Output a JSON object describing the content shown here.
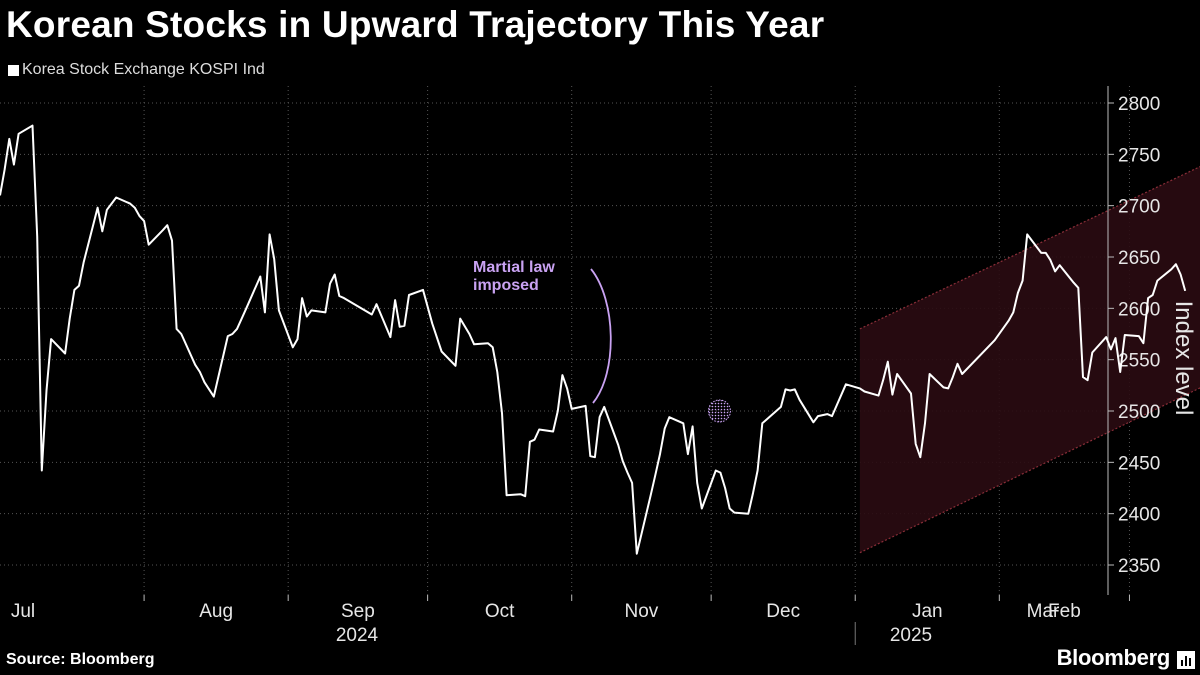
{
  "title": "Korean Stocks in Upward Trajectory This Year",
  "legend": "Korea Stock Exchange KOSPI Ind",
  "source": "Source: Bloomberg",
  "brand": "Bloomberg",
  "colors": {
    "background": "#000000",
    "line": "#ffffff",
    "annotation": "#c9a2f2",
    "channel": "#2a0b12",
    "channel_edge": "#8a2e38"
  },
  "chart_data": {
    "type": "line",
    "title": "Korean Stocks in Upward Trajectory This Year",
    "ylabel": "Index level",
    "ylim": [
      2320,
      2830
    ],
    "y_ticks": [
      2350,
      2400,
      2450,
      2500,
      2550,
      2600,
      2650,
      2700,
      2750,
      2800
    ],
    "x_tick_labels": [
      "Jul",
      "Aug",
      "Sep",
      "Oct",
      "Nov",
      "Dec",
      "Jan",
      "Feb",
      "Mar"
    ],
    "year_labels": [
      "2024",
      "2025"
    ],
    "grid": true,
    "legend_position": "top-left",
    "annotation": {
      "text": [
        "Martial law",
        "imposed"
      ],
      "date": "2024-12-03",
      "value": 2500
    },
    "channel": {
      "upper": [
        [
          "2025-01-02",
          2580
        ],
        [
          "2025-03-31",
          2770
        ]
      ],
      "lower": [
        [
          "2025-01-02",
          2362
        ],
        [
          "2025-03-31",
          2555
        ]
      ]
    },
    "series": [
      {
        "name": "Korea Stock Exchange KOSPI Ind",
        "points": [
          [
            "2024-07-01",
            2710
          ],
          [
            "2024-07-02",
            2735
          ],
          [
            "2024-07-03",
            2765
          ],
          [
            "2024-07-04",
            2740
          ],
          [
            "2024-07-05",
            2770
          ],
          [
            "2024-07-08",
            2778
          ],
          [
            "2024-07-09",
            2670
          ],
          [
            "2024-07-10",
            2442
          ],
          [
            "2024-07-11",
            2520
          ],
          [
            "2024-07-12",
            2570
          ],
          [
            "2024-07-15",
            2556
          ],
          [
            "2024-07-16",
            2590
          ],
          [
            "2024-07-17",
            2618
          ],
          [
            "2024-07-18",
            2622
          ],
          [
            "2024-07-19",
            2645
          ],
          [
            "2024-07-22",
            2698
          ],
          [
            "2024-07-23",
            2675
          ],
          [
            "2024-07-24",
            2696
          ],
          [
            "2024-07-25",
            2702
          ],
          [
            "2024-07-26",
            2708
          ],
          [
            "2024-07-29",
            2702
          ],
          [
            "2024-07-30",
            2698
          ],
          [
            "2024-07-31",
            2690
          ],
          [
            "2024-08-01",
            2685
          ],
          [
            "2024-08-02",
            2662
          ],
          [
            "2024-08-05",
            2676
          ],
          [
            "2024-08-06",
            2681
          ],
          [
            "2024-08-07",
            2666
          ],
          [
            "2024-08-08",
            2580
          ],
          [
            "2024-08-09",
            2575
          ],
          [
            "2024-08-12",
            2545
          ],
          [
            "2024-08-13",
            2538
          ],
          [
            "2024-08-14",
            2528
          ],
          [
            "2024-08-16",
            2514
          ],
          [
            "2024-08-19",
            2573
          ],
          [
            "2024-08-20",
            2575
          ],
          [
            "2024-08-21",
            2580
          ],
          [
            "2024-08-22",
            2590
          ],
          [
            "2024-08-23",
            2600
          ],
          [
            "2024-08-26",
            2631
          ],
          [
            "2024-08-27",
            2596
          ],
          [
            "2024-08-28",
            2672
          ],
          [
            "2024-08-29",
            2648
          ],
          [
            "2024-08-30",
            2598
          ],
          [
            "2024-09-02",
            2562
          ],
          [
            "2024-09-03",
            2570
          ],
          [
            "2024-09-04",
            2610
          ],
          [
            "2024-09-05",
            2592
          ],
          [
            "2024-09-06",
            2598
          ],
          [
            "2024-09-09",
            2596
          ],
          [
            "2024-09-10",
            2624
          ],
          [
            "2024-09-11",
            2633
          ],
          [
            "2024-09-12",
            2612
          ],
          [
            "2024-09-13",
            2610
          ],
          [
            "2024-09-19",
            2594
          ],
          [
            "2024-09-20",
            2604
          ],
          [
            "2024-09-23",
            2572
          ],
          [
            "2024-09-24",
            2608
          ],
          [
            "2024-09-25",
            2582
          ],
          [
            "2024-09-26",
            2583
          ],
          [
            "2024-09-27",
            2613
          ],
          [
            "2024-09-30",
            2618
          ],
          [
            "2024-10-02",
            2585
          ],
          [
            "2024-10-04",
            2558
          ],
          [
            "2024-10-07",
            2544
          ],
          [
            "2024-10-08",
            2590
          ],
          [
            "2024-10-10",
            2575
          ],
          [
            "2024-10-11",
            2565
          ],
          [
            "2024-10-14",
            2566
          ],
          [
            "2024-10-15",
            2562
          ],
          [
            "2024-10-16",
            2538
          ],
          [
            "2024-10-17",
            2498
          ],
          [
            "2024-10-18",
            2418
          ],
          [
            "2024-10-21",
            2419
          ],
          [
            "2024-10-22",
            2417
          ],
          [
            "2024-10-23",
            2470
          ],
          [
            "2024-10-24",
            2472
          ],
          [
            "2024-10-25",
            2482
          ],
          [
            "2024-10-28",
            2480
          ],
          [
            "2024-10-29",
            2500
          ],
          [
            "2024-10-30",
            2535
          ],
          [
            "2024-10-31",
            2522
          ],
          [
            "2024-11-01",
            2502
          ],
          [
            "2024-11-04",
            2505
          ],
          [
            "2024-11-05",
            2456
          ],
          [
            "2024-11-06",
            2455
          ],
          [
            "2024-11-07",
            2494
          ],
          [
            "2024-11-08",
            2504
          ],
          [
            "2024-11-11",
            2467
          ],
          [
            "2024-11-12",
            2451
          ],
          [
            "2024-11-13",
            2440
          ],
          [
            "2024-11-14",
            2430
          ],
          [
            "2024-11-15",
            2361
          ],
          [
            "2024-11-18",
            2418
          ],
          [
            "2024-11-19",
            2438
          ],
          [
            "2024-11-20",
            2458
          ],
          [
            "2024-11-21",
            2483
          ],
          [
            "2024-11-22",
            2494
          ],
          [
            "2024-11-25",
            2488
          ],
          [
            "2024-11-26",
            2458
          ],
          [
            "2024-11-27",
            2485
          ],
          [
            "2024-11-28",
            2430
          ],
          [
            "2024-11-29",
            2405
          ],
          [
            "2024-12-02",
            2442
          ],
          [
            "2024-12-03",
            2440
          ],
          [
            "2024-12-04",
            2425
          ],
          [
            "2024-12-05",
            2405
          ],
          [
            "2024-12-06",
            2401
          ],
          [
            "2024-12-09",
            2400
          ],
          [
            "2024-12-10",
            2420
          ],
          [
            "2024-12-11",
            2442
          ],
          [
            "2024-12-12",
            2488
          ],
          [
            "2024-12-13",
            2492
          ],
          [
            "2024-12-16",
            2504
          ],
          [
            "2024-12-17",
            2521
          ],
          [
            "2024-12-18",
            2520
          ],
          [
            "2024-12-19",
            2521
          ],
          [
            "2024-12-20",
            2511
          ],
          [
            "2024-12-23",
            2489
          ],
          [
            "2024-12-24",
            2495
          ],
          [
            "2024-12-26",
            2497
          ],
          [
            "2024-12-27",
            2495
          ],
          [
            "2024-12-30",
            2526
          ],
          [
            "2025-01-02",
            2522
          ],
          [
            "2025-01-03",
            2519
          ],
          [
            "2025-01-06",
            2515
          ],
          [
            "2025-01-07",
            2530
          ],
          [
            "2025-01-08",
            2548
          ],
          [
            "2025-01-09",
            2516
          ],
          [
            "2025-01-10",
            2536
          ],
          [
            "2025-01-13",
            2517
          ],
          [
            "2025-01-14",
            2468
          ],
          [
            "2025-01-15",
            2455
          ],
          [
            "2025-01-16",
            2488
          ],
          [
            "2025-01-17",
            2536
          ],
          [
            "2025-01-20",
            2523
          ],
          [
            "2025-01-21",
            2522
          ],
          [
            "2025-01-22",
            2533
          ],
          [
            "2025-01-23",
            2546
          ],
          [
            "2025-01-24",
            2536
          ],
          [
            "2025-01-31",
            2569
          ],
          [
            "2025-02-03",
            2588
          ],
          [
            "2025-02-04",
            2596
          ],
          [
            "2025-02-05",
            2615
          ],
          [
            "2025-02-06",
            2627
          ],
          [
            "2025-02-07",
            2672
          ],
          [
            "2025-02-10",
            2654
          ],
          [
            "2025-02-11",
            2654
          ],
          [
            "2025-02-12",
            2647
          ],
          [
            "2025-02-13",
            2636
          ],
          [
            "2025-02-14",
            2642
          ],
          [
            "2025-02-17",
            2625
          ],
          [
            "2025-02-18",
            2620
          ],
          [
            "2025-02-19",
            2533
          ],
          [
            "2025-02-20",
            2530
          ],
          [
            "2025-02-21",
            2557
          ],
          [
            "2025-02-24",
            2572
          ],
          [
            "2025-02-25",
            2560
          ],
          [
            "2025-02-26",
            2571
          ],
          [
            "2025-02-27",
            2538
          ],
          [
            "2025-02-28",
            2574
          ],
          [
            "2025-03-03",
            2573
          ],
          [
            "2025-03-04",
            2566
          ],
          [
            "2025-03-05",
            2610
          ],
          [
            "2025-03-06",
            2613
          ],
          [
            "2025-03-07",
            2627
          ],
          [
            "2025-03-10",
            2638
          ],
          [
            "2025-03-11",
            2643
          ],
          [
            "2025-03-12",
            2633
          ],
          [
            "2025-03-13",
            2617
          ]
        ]
      }
    ]
  }
}
